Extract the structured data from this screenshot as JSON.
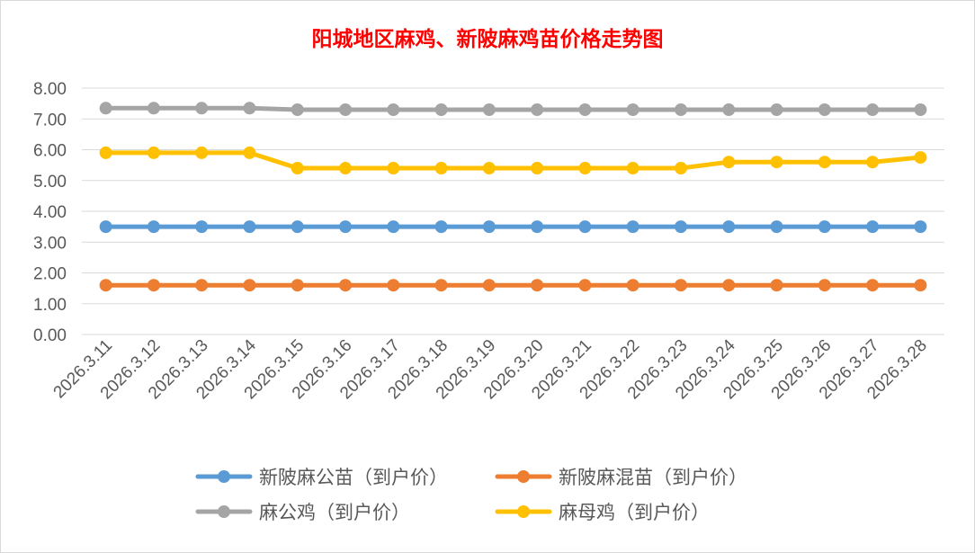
{
  "chart_data": {
    "type": "line",
    "title": "阳城地区麻鸡、新陂麻鸡苗价格走势图",
    "xlabel": "",
    "ylabel": "",
    "ylim": [
      0,
      8
    ],
    "yticks": [
      "0.00",
      "1.00",
      "2.00",
      "3.00",
      "4.00",
      "5.00",
      "6.00",
      "7.00",
      "8.00"
    ],
    "grid": true,
    "legend_position": "bottom",
    "categories": [
      "2026.3.11",
      "2026.3.12",
      "2026.3.13",
      "2026.3.14",
      "2026.3.15",
      "2026.3.16",
      "2026.3.17",
      "2026.3.18",
      "2026.3.19",
      "2026.3.20",
      "2026.3.21",
      "2026.3.22",
      "2026.3.23",
      "2026.3.24",
      "2026.3.25",
      "2026.3.26",
      "2026.3.27",
      "2026.3.28"
    ],
    "series": [
      {
        "name": "新陂麻公苗（到户价）",
        "color": "#5b9bd5",
        "values": [
          3.5,
          3.5,
          3.5,
          3.5,
          3.5,
          3.5,
          3.5,
          3.5,
          3.5,
          3.5,
          3.5,
          3.5,
          3.5,
          3.5,
          3.5,
          3.5,
          3.5,
          3.5
        ]
      },
      {
        "name": "新陂麻混苗（到户价）",
        "color": "#ed7d31",
        "values": [
          1.6,
          1.6,
          1.6,
          1.6,
          1.6,
          1.6,
          1.6,
          1.6,
          1.6,
          1.6,
          1.6,
          1.6,
          1.6,
          1.6,
          1.6,
          1.6,
          1.6,
          1.6
        ]
      },
      {
        "name": "麻公鸡（到户价）",
        "color": "#a5a5a5",
        "values": [
          7.35,
          7.35,
          7.35,
          7.35,
          7.3,
          7.3,
          7.3,
          7.3,
          7.3,
          7.3,
          7.3,
          7.3,
          7.3,
          7.3,
          7.3,
          7.3,
          7.3,
          7.3
        ]
      },
      {
        "name": "麻母鸡（到户价）",
        "color": "#ffc000",
        "values": [
          5.9,
          5.9,
          5.9,
          5.9,
          5.4,
          5.4,
          5.4,
          5.4,
          5.4,
          5.4,
          5.4,
          5.4,
          5.4,
          5.6,
          5.6,
          5.6,
          5.6,
          5.75
        ]
      }
    ]
  }
}
